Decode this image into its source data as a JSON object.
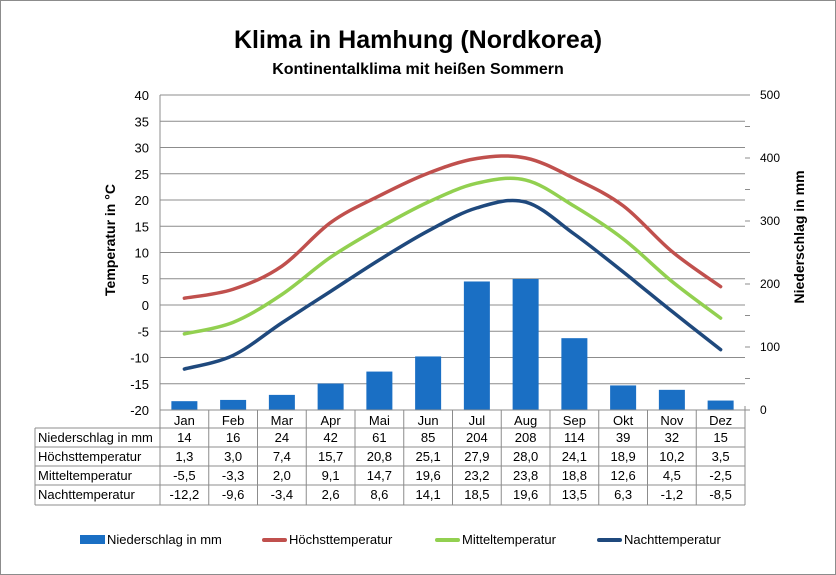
{
  "chart_data": {
    "type": "bar+line",
    "title": "Klima in Hamhung (Nordkorea)",
    "subtitle": "Kontinentalklima mit heißen Sommern",
    "categories": [
      "Jan",
      "Feb",
      "Mar",
      "Apr",
      "Mai",
      "Jun",
      "Jul",
      "Aug",
      "Sep",
      "Okt",
      "Nov",
      "Dez"
    ],
    "ylabel_left": "Temperatur in °C",
    "ylabel_right": "Niederschlag in mm",
    "ylim_left": [
      -20,
      40
    ],
    "yticks_left": [
      "40",
      "35",
      "30",
      "25",
      "20",
      "15",
      "10",
      "5",
      "0",
      "-5",
      "-10",
      "-15",
      "-20"
    ],
    "ylim_right": [
      0,
      500
    ],
    "yticks_right": [
      "500",
      "400",
      "300",
      "200",
      "100",
      "0"
    ],
    "grid": true,
    "legend_position": "bottom",
    "series": [
      {
        "name": "Niederschlag in mm",
        "type": "bar",
        "axis": "right",
        "color": "#1a6fc4",
        "values": [
          14,
          16,
          24,
          42,
          61,
          85,
          204,
          208,
          114,
          39,
          32,
          15
        ],
        "labels": [
          "14",
          "16",
          "24",
          "42",
          "61",
          "85",
          "204",
          "208",
          "114",
          "39",
          "32",
          "15"
        ]
      },
      {
        "name": "Höchsttemperatur",
        "type": "line",
        "axis": "left",
        "color": "#c0504d",
        "values": [
          1.3,
          3.0,
          7.4,
          15.7,
          20.8,
          25.1,
          27.9,
          28.0,
          24.1,
          18.9,
          10.2,
          3.5
        ],
        "labels": [
          "1,3",
          "3,0",
          "7,4",
          "15,7",
          "20,8",
          "25,1",
          "27,9",
          "28,0",
          "24,1",
          "18,9",
          "10,2",
          "3,5"
        ]
      },
      {
        "name": "Mitteltemperatur",
        "type": "line",
        "axis": "left",
        "color": "#92d050",
        "values": [
          -5.5,
          -3.3,
          2.0,
          9.1,
          14.7,
          19.6,
          23.2,
          23.8,
          18.8,
          12.6,
          4.5,
          -2.5
        ],
        "labels": [
          "-5,5",
          "-3,3",
          "2,0",
          "9,1",
          "14,7",
          "19,6",
          "23,2",
          "23,8",
          "18,8",
          "12,6",
          "4,5",
          "-2,5"
        ]
      },
      {
        "name": "Nachttemperatur",
        "type": "line",
        "axis": "left",
        "color": "#1f497d",
        "values": [
          -12.2,
          -9.6,
          -3.4,
          2.6,
          8.6,
          14.1,
          18.5,
          19.6,
          13.5,
          6.3,
          -1.2,
          -8.5
        ],
        "labels": [
          "-12,2",
          "-9,6",
          "-3,4",
          "2,6",
          "8,6",
          "14,1",
          "18,5",
          "19,6",
          "13,5",
          "6,3",
          "-1,2",
          "-8,5"
        ]
      }
    ]
  }
}
